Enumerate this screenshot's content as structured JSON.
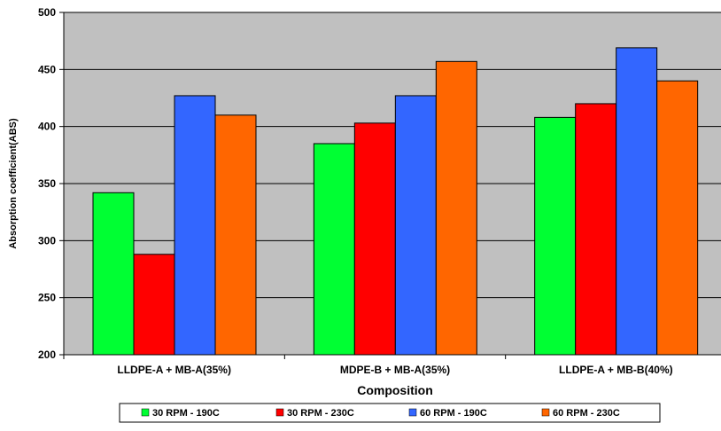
{
  "chart_data": {
    "type": "bar",
    "title": "",
    "xlabel": "Composition",
    "ylabel": "Absorption coefficient(ABS)",
    "ylim": [
      200,
      500
    ],
    "yticks": [
      200,
      250,
      300,
      350,
      400,
      450,
      500
    ],
    "grid": true,
    "legend_position": "bottom",
    "categories": [
      "LLDPE-A + MB-A(35%)",
      "MDPE-B + MB-A(35%)",
      "LLDPE-A + MB-B(40%)"
    ],
    "series": [
      {
        "name": "30 RPM - 190C",
        "color": "#00ff33",
        "values": [
          342,
          385,
          408
        ]
      },
      {
        "name": "30 RPM - 230C",
        "color": "#ff0000",
        "values": [
          288,
          403,
          420
        ]
      },
      {
        "name": "60 RPM - 190C",
        "color": "#3366ff",
        "values": [
          427,
          427,
          469
        ]
      },
      {
        "name": "60 RPM - 230C",
        "color": "#ff6600",
        "values": [
          410,
          457,
          440
        ]
      }
    ],
    "plot_background": "#c0c0c0"
  }
}
